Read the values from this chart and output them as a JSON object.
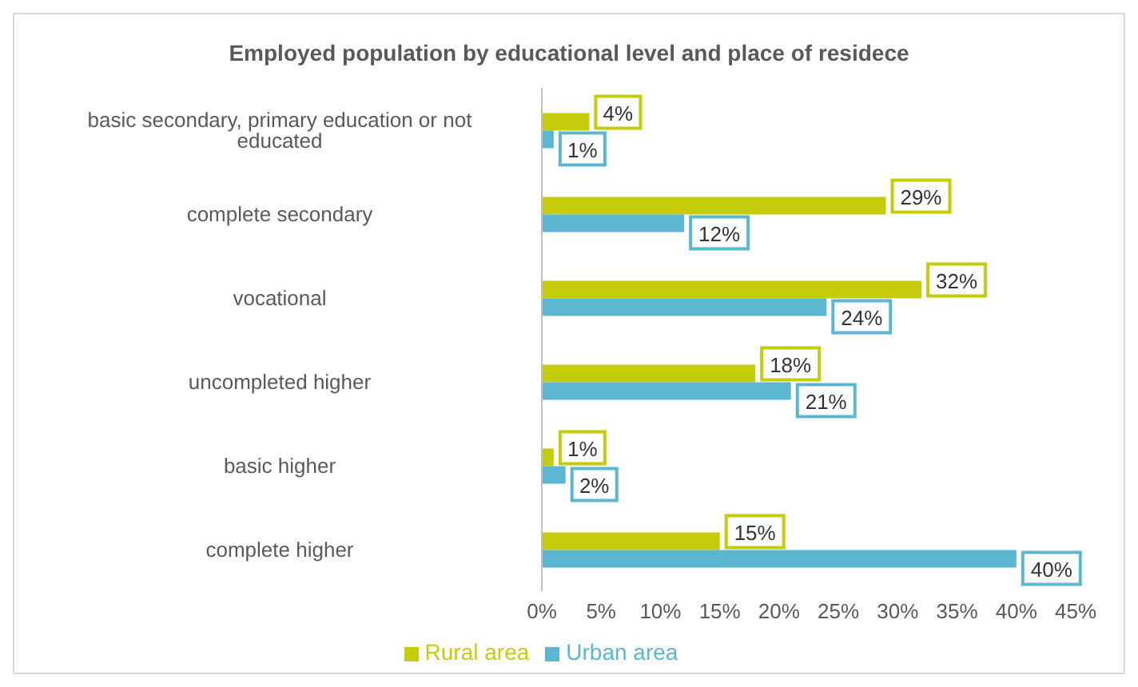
{
  "chart_data": {
    "type": "bar",
    "orientation": "horizontal",
    "title": "Employed population by educational level and place of residece",
    "categories": [
      "basic secondary, primary education or not educated",
      "complete secondary",
      "vocational",
      "uncompleted higher",
      "basic higher",
      "complete higher"
    ],
    "series": [
      {
        "name": "Rural area",
        "color": "#c5cc0a",
        "values": [
          4,
          29,
          32,
          18,
          1,
          15
        ],
        "value_labels": [
          "4%",
          "29%",
          "32%",
          "18%",
          "1%",
          "15%"
        ]
      },
      {
        "name": "Urban  area",
        "color": "#5bb6cf",
        "values": [
          1,
          12,
          24,
          21,
          2,
          40
        ],
        "value_labels": [
          "1%",
          "12%",
          "24%",
          "21%",
          "2%",
          "40%"
        ]
      }
    ],
    "xlim": [
      0,
      45
    ],
    "xticks": [
      {
        "value": 0,
        "label": "0%"
      },
      {
        "value": 5,
        "label": "5%"
      },
      {
        "value": 10,
        "label": "10%"
      },
      {
        "value": 15,
        "label": "15%"
      },
      {
        "value": 20,
        "label": "20%"
      },
      {
        "value": 25,
        "label": "25%"
      },
      {
        "value": 30,
        "label": "30%"
      },
      {
        "value": 35,
        "label": "35%"
      },
      {
        "value": 40,
        "label": "40%"
      },
      {
        "value": 45,
        "label": "45%"
      }
    ],
    "grid": false,
    "legend": "bottom"
  }
}
